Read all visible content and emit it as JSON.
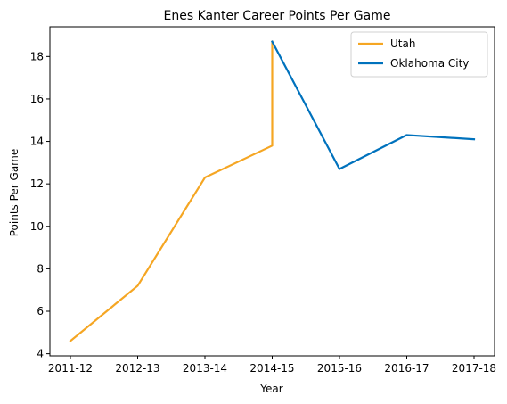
{
  "chart_data": {
    "type": "line",
    "title": "Enes Kanter Career Points Per Game",
    "xlabel": "Year",
    "ylabel": "Points Per Game",
    "categories": [
      "2011-12",
      "2012-13",
      "2013-14",
      "2014-15",
      "2015-16",
      "2016-17",
      "2017-18"
    ],
    "ylim": [
      3.9,
      19.4
    ],
    "yticks": [
      4,
      6,
      8,
      10,
      12,
      14,
      16,
      18
    ],
    "grid": false,
    "legend_position": "top-right",
    "series": [
      {
        "name": "Utah",
        "color": "#f5a623",
        "points": [
          {
            "x": "2011-12",
            "y": 4.6
          },
          {
            "x": "2012-13",
            "y": 7.2
          },
          {
            "x": "2013-14",
            "y": 12.3
          },
          {
            "x": "2014-15",
            "y": 13.8
          },
          {
            "x": "2014-15",
            "y": 18.7
          }
        ]
      },
      {
        "name": "Oklahoma City",
        "color": "#0072bd",
        "points": [
          {
            "x": "2014-15",
            "y": 18.7
          },
          {
            "x": "2015-16",
            "y": 12.7
          },
          {
            "x": "2016-17",
            "y": 14.3
          },
          {
            "x": "2017-18",
            "y": 14.1
          }
        ]
      }
    ]
  }
}
